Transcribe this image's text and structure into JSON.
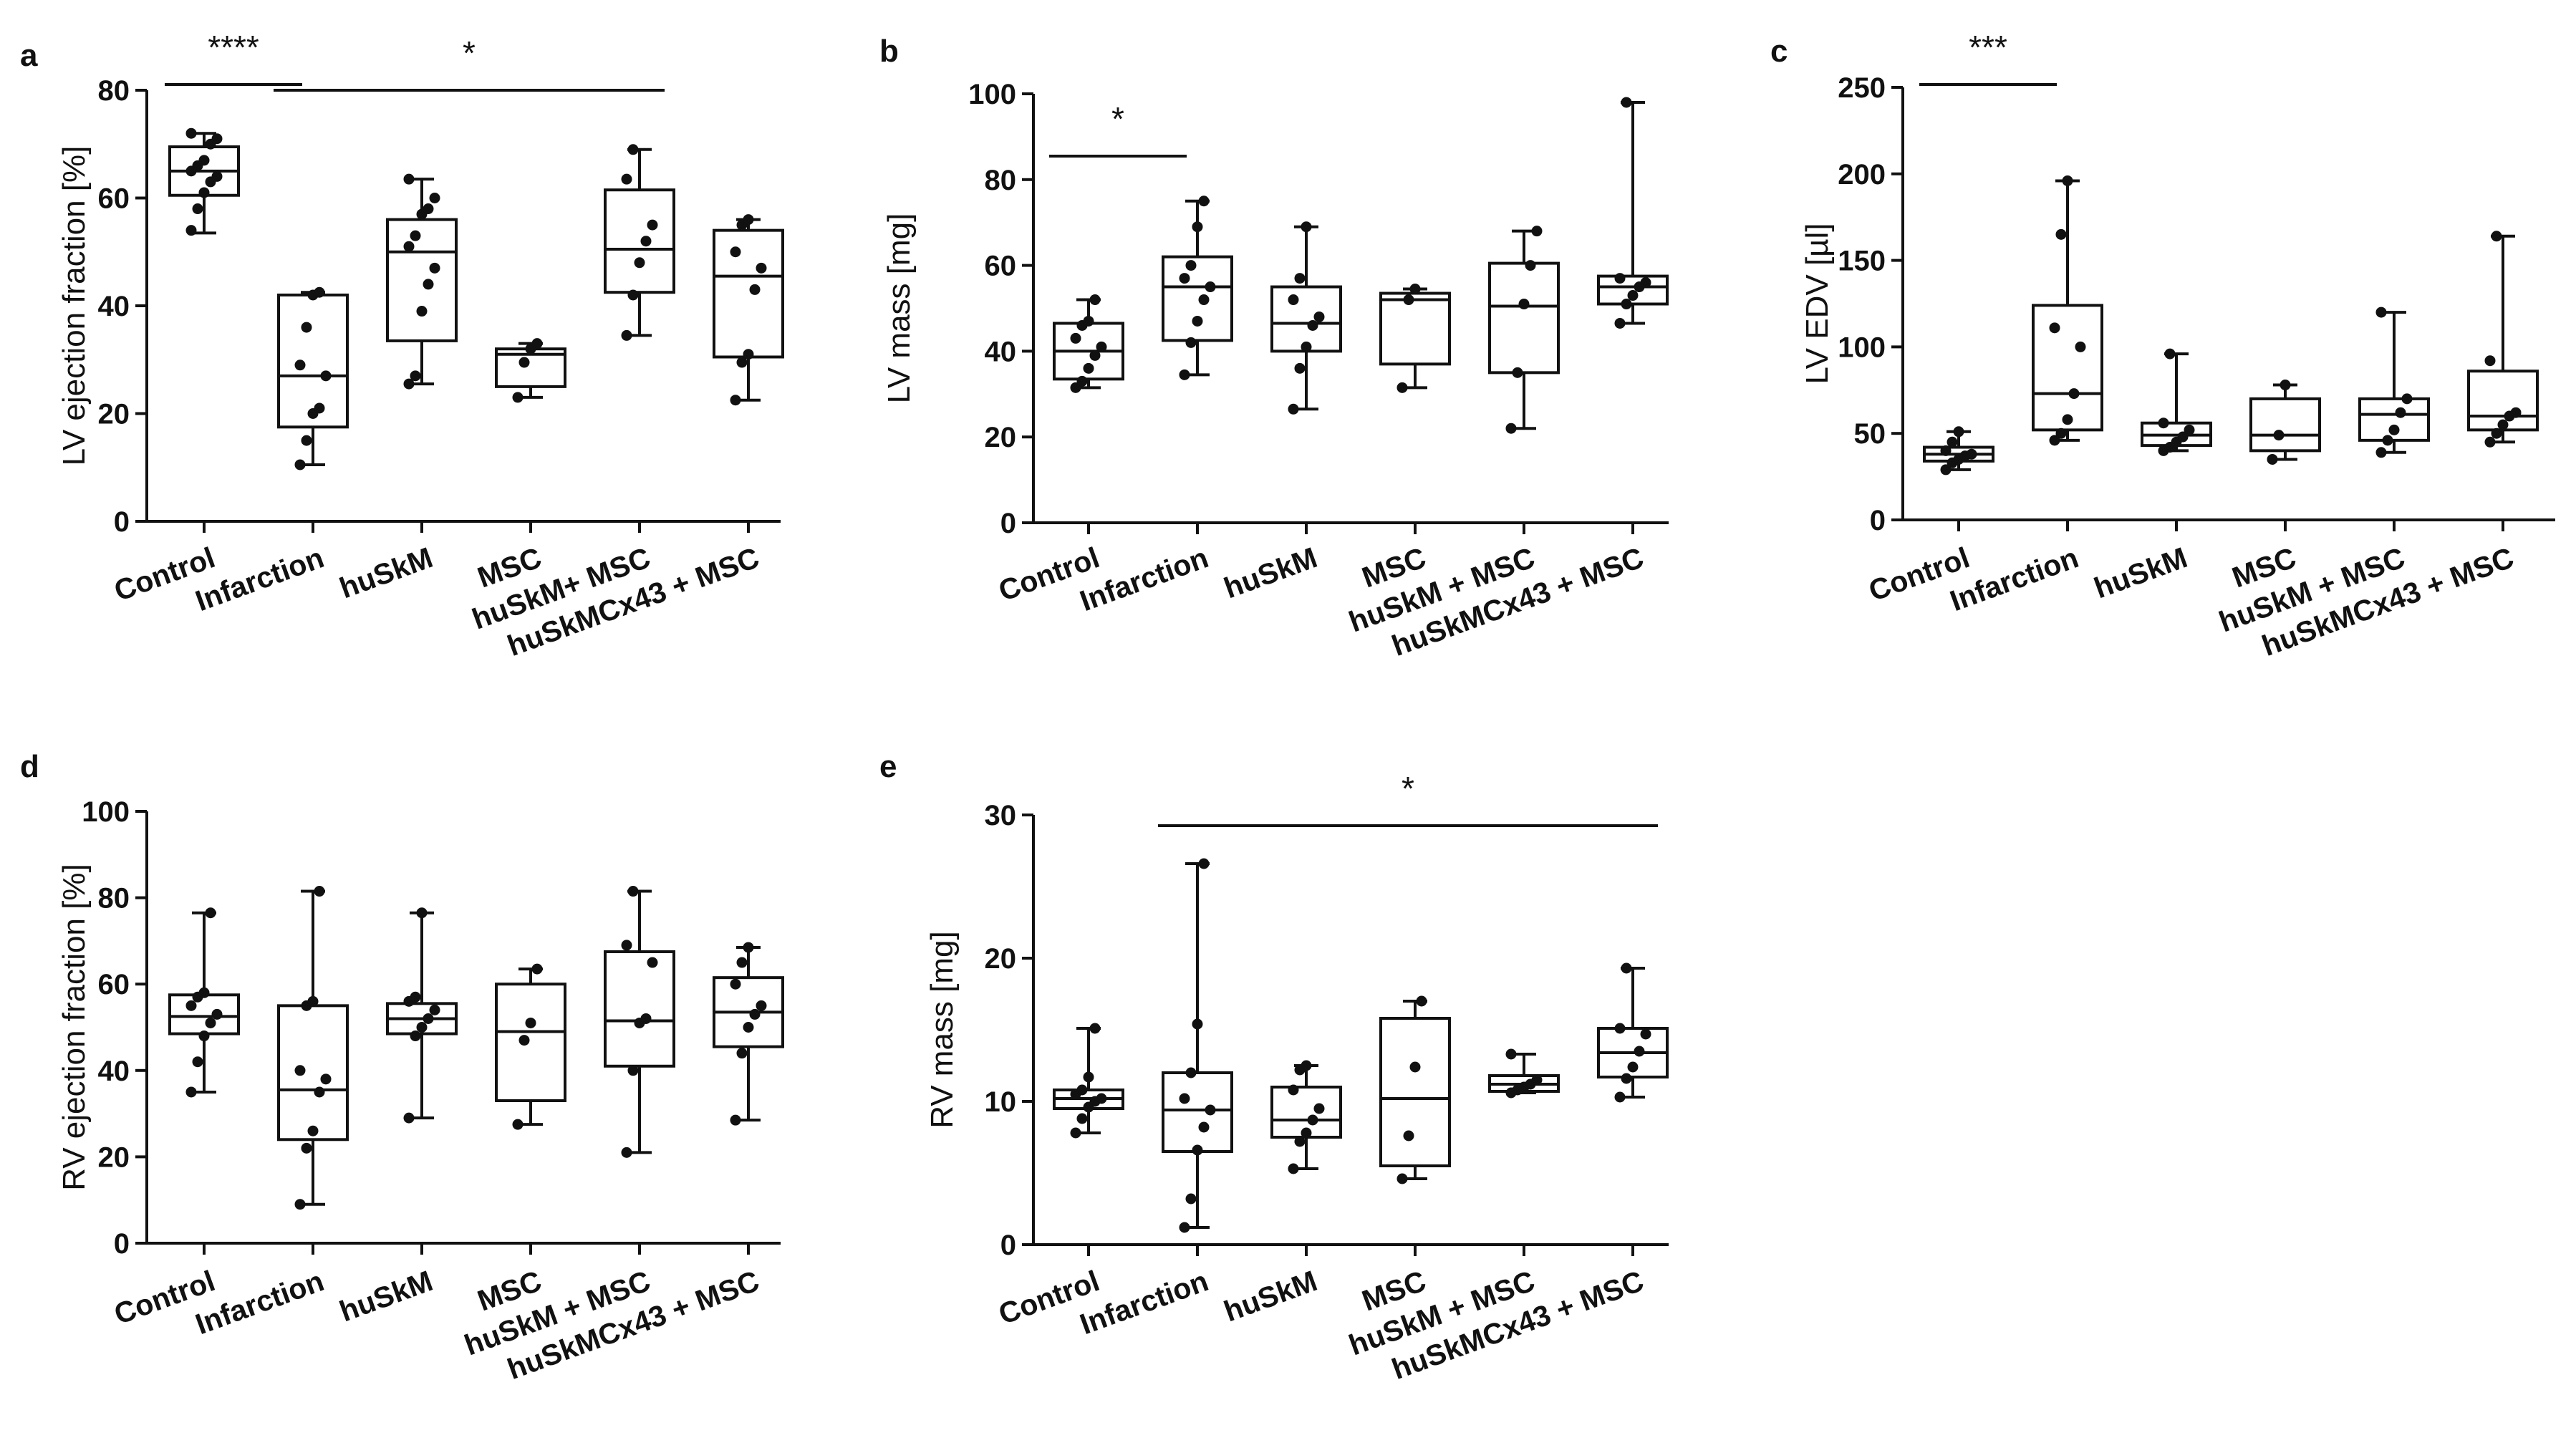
{
  "chart_data": [
    {
      "panel": "a",
      "type": "box",
      "ylabel": "LV ejection fraction [%]",
      "ylim": [
        0,
        80
      ],
      "yticks": [
        0,
        20,
        40,
        60,
        80
      ],
      "categories": [
        "Control",
        "Infarction",
        "huSkM",
        "MSC",
        "huSkM+ MSC",
        "huSkMCx43 + MSC"
      ],
      "boxes": [
        {
          "min": 53.5,
          "q1": 60.5,
          "median": 65,
          "q3": 69.5,
          "max": 72,
          "points": [
            54,
            58,
            61,
            63,
            64,
            65,
            66,
            67,
            70,
            71,
            72
          ]
        },
        {
          "min": 10.5,
          "q1": 17.5,
          "median": 27,
          "q3": 42,
          "max": 42.5,
          "points": [
            10.5,
            15,
            20,
            21,
            27,
            29,
            36,
            42,
            42.5
          ]
        },
        {
          "min": 25.5,
          "q1": 33.5,
          "median": 50,
          "q3": 56,
          "max": 63.5,
          "points": [
            25.5,
            27,
            39,
            44,
            47,
            51,
            53,
            57,
            58,
            60,
            63.5
          ]
        },
        {
          "min": 23,
          "q1": 25,
          "median": 31,
          "q3": 32,
          "max": 33,
          "points": [
            23,
            29.5,
            32,
            33
          ]
        },
        {
          "min": 34.5,
          "q1": 42.5,
          "median": 50.5,
          "q3": 61.5,
          "max": 69,
          "points": [
            34.5,
            42,
            48,
            52,
            55,
            63.5,
            69
          ]
        },
        {
          "min": 22.5,
          "q1": 30.5,
          "median": 45.5,
          "q3": 54,
          "max": 56,
          "points": [
            22.5,
            29.5,
            31,
            43,
            47,
            50,
            55,
            56
          ]
        }
      ],
      "significance": [
        {
          "from": 0,
          "to": 1,
          "label": "****"
        },
        {
          "from": 1,
          "to": 4,
          "label": "*"
        }
      ]
    },
    {
      "panel": "b",
      "type": "box",
      "ylabel": "LV mass [mg]",
      "ylim": [
        0,
        100
      ],
      "yticks": [
        0,
        20,
        40,
        60,
        80,
        100
      ],
      "categories": [
        "Control",
        "Infarction",
        "huSkM",
        "MSC",
        "huSkM + MSC",
        "huSkMCx43 + MSC"
      ],
      "boxes": [
        {
          "min": 31.5,
          "q1": 33.5,
          "median": 40,
          "q3": 46.5,
          "max": 52,
          "points": [
            31.5,
            33,
            36,
            39,
            41,
            43,
            46,
            47,
            52
          ]
        },
        {
          "min": 34.5,
          "q1": 42.5,
          "median": 55,
          "q3": 62,
          "max": 75,
          "points": [
            34.5,
            42,
            47,
            52,
            55,
            57,
            60,
            69,
            75
          ]
        },
        {
          "min": 26.5,
          "q1": 40,
          "median": 46.5,
          "q3": 55,
          "max": 69,
          "points": [
            26.5,
            36,
            41,
            46,
            48,
            52,
            57,
            69
          ]
        },
        {
          "min": 31.5,
          "q1": 37,
          "median": 52,
          "q3": 53.5,
          "max": 54.5,
          "points": [
            31.5,
            52,
            54.5
          ]
        },
        {
          "min": 22,
          "q1": 35,
          "median": 50.5,
          "q3": 60.5,
          "max": 68,
          "points": [
            22,
            35,
            51,
            60,
            68
          ]
        },
        {
          "min": 46.5,
          "q1": 51,
          "median": 55,
          "q3": 57.5,
          "max": 98,
          "points": [
            46.5,
            51,
            53,
            55,
            56,
            57,
            98
          ]
        }
      ],
      "significance": [
        {
          "from": 0,
          "to": 1,
          "label": "*"
        }
      ]
    },
    {
      "panel": "c",
      "type": "box",
      "ylabel": "LV EDV [µl]",
      "ylim": [
        0,
        250
      ],
      "yticks": [
        0,
        50,
        100,
        150,
        200,
        250
      ],
      "categories": [
        "Control",
        "Infarction",
        "huSkM",
        "MSC",
        "huSkM + MSC",
        "huSkMCx43 + MSC"
      ],
      "boxes": [
        {
          "min": 29,
          "q1": 34,
          "median": 38,
          "q3": 42,
          "max": 51,
          "points": [
            29,
            33,
            35,
            37,
            38,
            40,
            45,
            51
          ]
        },
        {
          "min": 46,
          "q1": 52,
          "median": 73,
          "q3": 124,
          "max": 196,
          "points": [
            46,
            50,
            58,
            73,
            100,
            111,
            165,
            196
          ]
        },
        {
          "min": 40,
          "q1": 43,
          "median": 49,
          "q3": 56,
          "max": 96,
          "points": [
            40,
            42,
            45,
            48,
            52,
            56,
            96
          ]
        },
        {
          "min": 35,
          "q1": 40,
          "median": 49,
          "q3": 70,
          "max": 78,
          "points": [
            35,
            49,
            78
          ]
        },
        {
          "min": 39,
          "q1": 46,
          "median": 61,
          "q3": 70,
          "max": 120,
          "points": [
            39,
            46,
            52,
            62,
            70,
            120
          ]
        },
        {
          "min": 45,
          "q1": 52,
          "median": 60,
          "q3": 86,
          "max": 164,
          "points": [
            45,
            50,
            55,
            60,
            62,
            92,
            164
          ]
        }
      ],
      "significance": [
        {
          "from": 0,
          "to": 1,
          "label": "***"
        }
      ]
    },
    {
      "panel": "d",
      "type": "box",
      "ylabel": "RV ejection fraction [%]",
      "ylim": [
        0,
        100
      ],
      "yticks": [
        0,
        20,
        40,
        60,
        80,
        100
      ],
      "categories": [
        "Control",
        "Infarction",
        "huSkM",
        "MSC",
        "huSkM + MSC",
        "huSkMCx43 + MSC"
      ],
      "boxes": [
        {
          "min": 35,
          "q1": 48.5,
          "median": 52.5,
          "q3": 57.5,
          "max": 76.5,
          "points": [
            35,
            42,
            48,
            51,
            53,
            55,
            57,
            58,
            76.5
          ]
        },
        {
          "min": 9,
          "q1": 24,
          "median": 35.5,
          "q3": 55,
          "max": 81.5,
          "points": [
            9,
            22,
            26,
            35,
            38,
            40,
            55,
            56,
            81.5
          ]
        },
        {
          "min": 29,
          "q1": 48.5,
          "median": 52,
          "q3": 55.5,
          "max": 76.5,
          "points": [
            29,
            48,
            50,
            52,
            54,
            56,
            57,
            76.5
          ]
        },
        {
          "min": 27.5,
          "q1": 33,
          "median": 49,
          "q3": 60,
          "max": 63.5,
          "points": [
            27.5,
            47,
            51,
            63.5
          ]
        },
        {
          "min": 21,
          "q1": 41,
          "median": 51.5,
          "q3": 67.5,
          "max": 81.5,
          "points": [
            21,
            40,
            51,
            52,
            65,
            69,
            81.5
          ]
        },
        {
          "min": 28.5,
          "q1": 45.5,
          "median": 53.5,
          "q3": 61.5,
          "max": 68.5,
          "points": [
            28.5,
            44,
            50,
            53,
            55,
            60,
            65,
            68.5
          ]
        }
      ],
      "significance": []
    },
    {
      "panel": "e",
      "type": "box",
      "ylabel": "RV mass [mg]",
      "ylim": [
        0,
        30
      ],
      "yticks": [
        0,
        10,
        20,
        30
      ],
      "categories": [
        "Control",
        "Infarction",
        "huSkM",
        "MSC",
        "huSkM + MSC",
        "huSkMCx43 + MSC"
      ],
      "boxes": [
        {
          "min": 7.8,
          "q1": 9.5,
          "median": 10.2,
          "q3": 10.8,
          "max": 15.1,
          "points": [
            7.8,
            8.8,
            9.6,
            10,
            10.2,
            10.5,
            10.8,
            11.7,
            15.1
          ]
        },
        {
          "min": 1.2,
          "q1": 6.5,
          "median": 9.4,
          "q3": 12,
          "max": 26.6,
          "points": [
            1.2,
            3.2,
            6.6,
            8.2,
            9.4,
            10.2,
            12,
            15.4,
            26.6
          ]
        },
        {
          "min": 5.3,
          "q1": 7.5,
          "median": 8.7,
          "q3": 11,
          "max": 12.5,
          "points": [
            5.3,
            7.2,
            7.8,
            8.7,
            9.5,
            10.8,
            12.2,
            12.5
          ]
        },
        {
          "min": 4.6,
          "q1": 5.5,
          "median": 10.2,
          "q3": 15.8,
          "max": 17,
          "points": [
            4.6,
            7.6,
            12.4,
            17
          ]
        },
        {
          "min": 10.6,
          "q1": 10.7,
          "median": 11.2,
          "q3": 11.8,
          "max": 13.3,
          "points": [
            10.6,
            10.8,
            11,
            11.2,
            11.5,
            13.3
          ]
        },
        {
          "min": 10.3,
          "q1": 11.7,
          "median": 13.4,
          "q3": 15.1,
          "max": 19.3,
          "points": [
            10.3,
            11.6,
            12.4,
            13.5,
            14.7,
            15.1,
            19.3
          ]
        }
      ],
      "significance": [
        {
          "from": 1,
          "to": 5,
          "label": "*"
        }
      ]
    }
  ]
}
